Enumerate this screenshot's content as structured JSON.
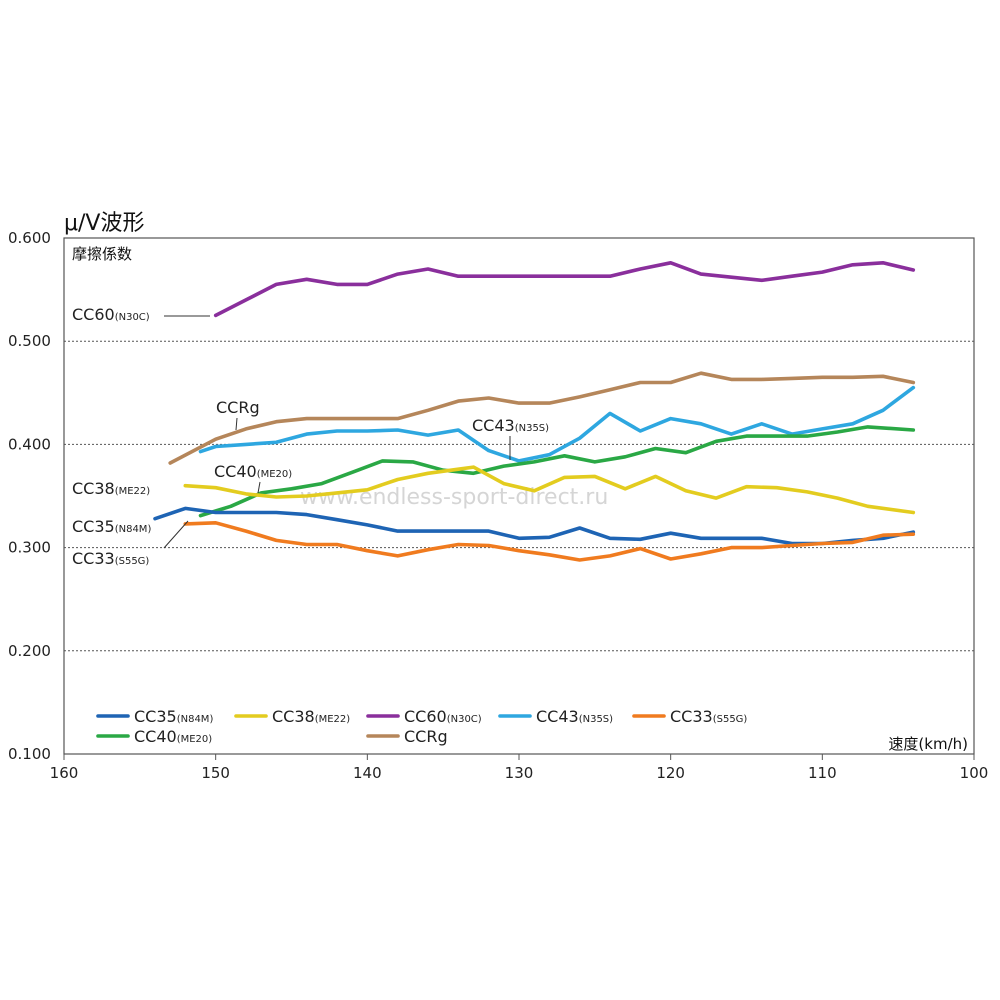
{
  "chart_data": {
    "type": "line",
    "title": "μ/V波形",
    "ylabel": "摩擦係数",
    "xlabel": "速度(km/h)",
    "xlim": [
      160,
      100
    ],
    "ylim": [
      0.1,
      0.6
    ],
    "x_ticks": [
      "160",
      "150",
      "140",
      "130",
      "120",
      "110",
      "100"
    ],
    "y_ticks": [
      "0.100",
      "0.200",
      "0.300",
      "0.400",
      "0.500",
      "0.600"
    ],
    "grid": "horizontal dotted at 0.200, 0.300, 0.400, 0.500",
    "watermark": "www.endless-sport-direct.ru",
    "series": [
      {
        "name": "CC60",
        "code": "(N30C)",
        "color": "#8a2f9c",
        "points": [
          [
            150,
            0.525
          ],
          [
            148,
            0.54
          ],
          [
            146,
            0.555
          ],
          [
            144,
            0.56
          ],
          [
            142,
            0.555
          ],
          [
            140,
            0.555
          ],
          [
            138,
            0.565
          ],
          [
            136,
            0.57
          ],
          [
            134,
            0.563
          ],
          [
            132,
            0.563
          ],
          [
            130,
            0.563
          ],
          [
            128,
            0.563
          ],
          [
            126,
            0.563
          ],
          [
            124,
            0.563
          ],
          [
            122,
            0.57
          ],
          [
            120,
            0.576
          ],
          [
            118,
            0.565
          ],
          [
            116,
            0.562
          ],
          [
            114,
            0.559
          ],
          [
            112,
            0.563
          ],
          [
            110,
            0.567
          ],
          [
            108,
            0.574
          ],
          [
            106,
            0.576
          ],
          [
            104,
            0.569
          ]
        ]
      },
      {
        "name": "CCRg",
        "code": "",
        "color": "#b5865a",
        "points": [
          [
            153,
            0.382
          ],
          [
            150,
            0.405
          ],
          [
            148,
            0.415
          ],
          [
            146,
            0.422
          ],
          [
            144,
            0.425
          ],
          [
            142,
            0.425
          ],
          [
            140,
            0.425
          ],
          [
            138,
            0.425
          ],
          [
            136,
            0.433
          ],
          [
            134,
            0.442
          ],
          [
            132,
            0.445
          ],
          [
            130,
            0.44
          ],
          [
            128,
            0.44
          ],
          [
            126,
            0.446
          ],
          [
            124,
            0.453
          ],
          [
            122,
            0.46
          ],
          [
            120,
            0.46
          ],
          [
            118,
            0.469
          ],
          [
            116,
            0.463
          ],
          [
            114,
            0.463
          ],
          [
            112,
            0.464
          ],
          [
            110,
            0.465
          ],
          [
            108,
            0.465
          ],
          [
            106,
            0.466
          ],
          [
            104,
            0.46
          ]
        ]
      },
      {
        "name": "CC43",
        "code": "(N35S)",
        "color": "#2ea7e0",
        "points": [
          [
            151,
            0.393
          ],
          [
            150,
            0.398
          ],
          [
            148,
            0.4
          ],
          [
            146,
            0.402
          ],
          [
            144,
            0.41
          ],
          [
            142,
            0.413
          ],
          [
            140,
            0.413
          ],
          [
            138,
            0.414
          ],
          [
            136,
            0.409
          ],
          [
            134,
            0.414
          ],
          [
            132,
            0.394
          ],
          [
            130,
            0.384
          ],
          [
            128,
            0.39
          ],
          [
            126,
            0.406
          ],
          [
            124,
            0.43
          ],
          [
            122,
            0.413
          ],
          [
            120,
            0.425
          ],
          [
            118,
            0.42
          ],
          [
            116,
            0.41
          ],
          [
            114,
            0.42
          ],
          [
            112,
            0.41
          ],
          [
            110,
            0.415
          ],
          [
            108,
            0.42
          ],
          [
            106,
            0.433
          ],
          [
            104,
            0.455
          ]
        ]
      },
      {
        "name": "CC40",
        "code": "(ME20)",
        "color": "#2aa845",
        "points": [
          [
            151,
            0.331
          ],
          [
            149,
            0.34
          ],
          [
            147,
            0.353
          ],
          [
            145,
            0.357
          ],
          [
            143,
            0.362
          ],
          [
            141,
            0.373
          ],
          [
            139,
            0.384
          ],
          [
            137,
            0.383
          ],
          [
            135,
            0.375
          ],
          [
            133,
            0.372
          ],
          [
            131,
            0.379
          ],
          [
            129,
            0.383
          ],
          [
            127,
            0.389
          ],
          [
            125,
            0.383
          ],
          [
            123,
            0.388
          ],
          [
            121,
            0.396
          ],
          [
            119,
            0.392
          ],
          [
            117,
            0.403
          ],
          [
            115,
            0.408
          ],
          [
            113,
            0.408
          ],
          [
            111,
            0.408
          ],
          [
            109,
            0.412
          ],
          [
            107,
            0.417
          ],
          [
            104,
            0.414
          ]
        ]
      },
      {
        "name": "CC38",
        "code": "(ME22)",
        "color": "#e3cc1f",
        "points": [
          [
            152,
            0.36
          ],
          [
            150,
            0.358
          ],
          [
            148,
            0.352
          ],
          [
            146,
            0.349
          ],
          [
            144,
            0.35
          ],
          [
            142,
            0.353
          ],
          [
            140,
            0.356
          ],
          [
            138,
            0.366
          ],
          [
            136,
            0.372
          ],
          [
            134,
            0.376
          ],
          [
            133,
            0.378
          ],
          [
            131,
            0.362
          ],
          [
            129,
            0.355
          ],
          [
            127,
            0.368
          ],
          [
            125,
            0.369
          ],
          [
            123,
            0.357
          ],
          [
            121,
            0.369
          ],
          [
            119,
            0.355
          ],
          [
            117,
            0.348
          ],
          [
            115,
            0.359
          ],
          [
            113,
            0.358
          ],
          [
            111,
            0.354
          ],
          [
            109,
            0.348
          ],
          [
            107,
            0.34
          ],
          [
            104,
            0.334
          ]
        ]
      },
      {
        "name": "CC35",
        "code": "(N84M)",
        "color": "#1e64b4",
        "points": [
          [
            154,
            0.328
          ],
          [
            152,
            0.338
          ],
          [
            150,
            0.334
          ],
          [
            148,
            0.334
          ],
          [
            146,
            0.334
          ],
          [
            144,
            0.332
          ],
          [
            142,
            0.327
          ],
          [
            140,
            0.322
          ],
          [
            138,
            0.316
          ],
          [
            136,
            0.316
          ],
          [
            134,
            0.316
          ],
          [
            132,
            0.316
          ],
          [
            130,
            0.309
          ],
          [
            128,
            0.31
          ],
          [
            126,
            0.319
          ],
          [
            124,
            0.309
          ],
          [
            122,
            0.308
          ],
          [
            120,
            0.314
          ],
          [
            118,
            0.309
          ],
          [
            116,
            0.309
          ],
          [
            114,
            0.309
          ],
          [
            112,
            0.304
          ],
          [
            110,
            0.304
          ],
          [
            108,
            0.307
          ],
          [
            106,
            0.309
          ],
          [
            104,
            0.315
          ]
        ]
      },
      {
        "name": "CC33",
        "code": "(S55G)",
        "color": "#f07b1f",
        "points": [
          [
            152,
            0.323
          ],
          [
            150,
            0.324
          ],
          [
            148,
            0.316
          ],
          [
            146,
            0.307
          ],
          [
            144,
            0.303
          ],
          [
            142,
            0.303
          ],
          [
            140,
            0.297
          ],
          [
            138,
            0.292
          ],
          [
            136,
            0.298
          ],
          [
            134,
            0.303
          ],
          [
            132,
            0.302
          ],
          [
            130,
            0.297
          ],
          [
            128,
            0.293
          ],
          [
            126,
            0.288
          ],
          [
            124,
            0.292
          ],
          [
            122,
            0.299
          ],
          [
            120,
            0.289
          ],
          [
            118,
            0.294
          ],
          [
            116,
            0.3
          ],
          [
            114,
            0.3
          ],
          [
            112,
            0.302
          ],
          [
            110,
            0.304
          ],
          [
            108,
            0.305
          ],
          [
            106,
            0.312
          ],
          [
            104,
            0.313
          ]
        ]
      }
    ],
    "annotations": [
      {
        "name": "CC60",
        "code": "(N30C)"
      },
      {
        "name": "CCRg",
        "code": ""
      },
      {
        "name": "CC43",
        "code": "(N35S)"
      },
      {
        "name": "CC40",
        "code": "(ME20)"
      },
      {
        "name": "CC38",
        "code": "(ME22)"
      },
      {
        "name": "CC35",
        "code": "(N84M)"
      },
      {
        "name": "CC33",
        "code": "(S55G)"
      }
    ],
    "legend": {
      "placement": "bottom-left inside plot",
      "items": [
        {
          "name": "CC35",
          "code": "(N84M)",
          "color": "#1e64b4"
        },
        {
          "name": "CC38",
          "code": "(ME22)",
          "color": "#e3cc1f"
        },
        {
          "name": "CC60",
          "code": "(N30C)",
          "color": "#8a2f9c"
        },
        {
          "name": "CC43",
          "code": "(N35S)",
          "color": "#2ea7e0"
        },
        {
          "name": "CC33",
          "code": "(S55G)",
          "color": "#f07b1f"
        },
        {
          "name": "CC40",
          "code": "(ME20)",
          "color": "#2aa845"
        },
        {
          "name": "CCRg",
          "code": "",
          "color": "#b5865a"
        }
      ]
    }
  }
}
